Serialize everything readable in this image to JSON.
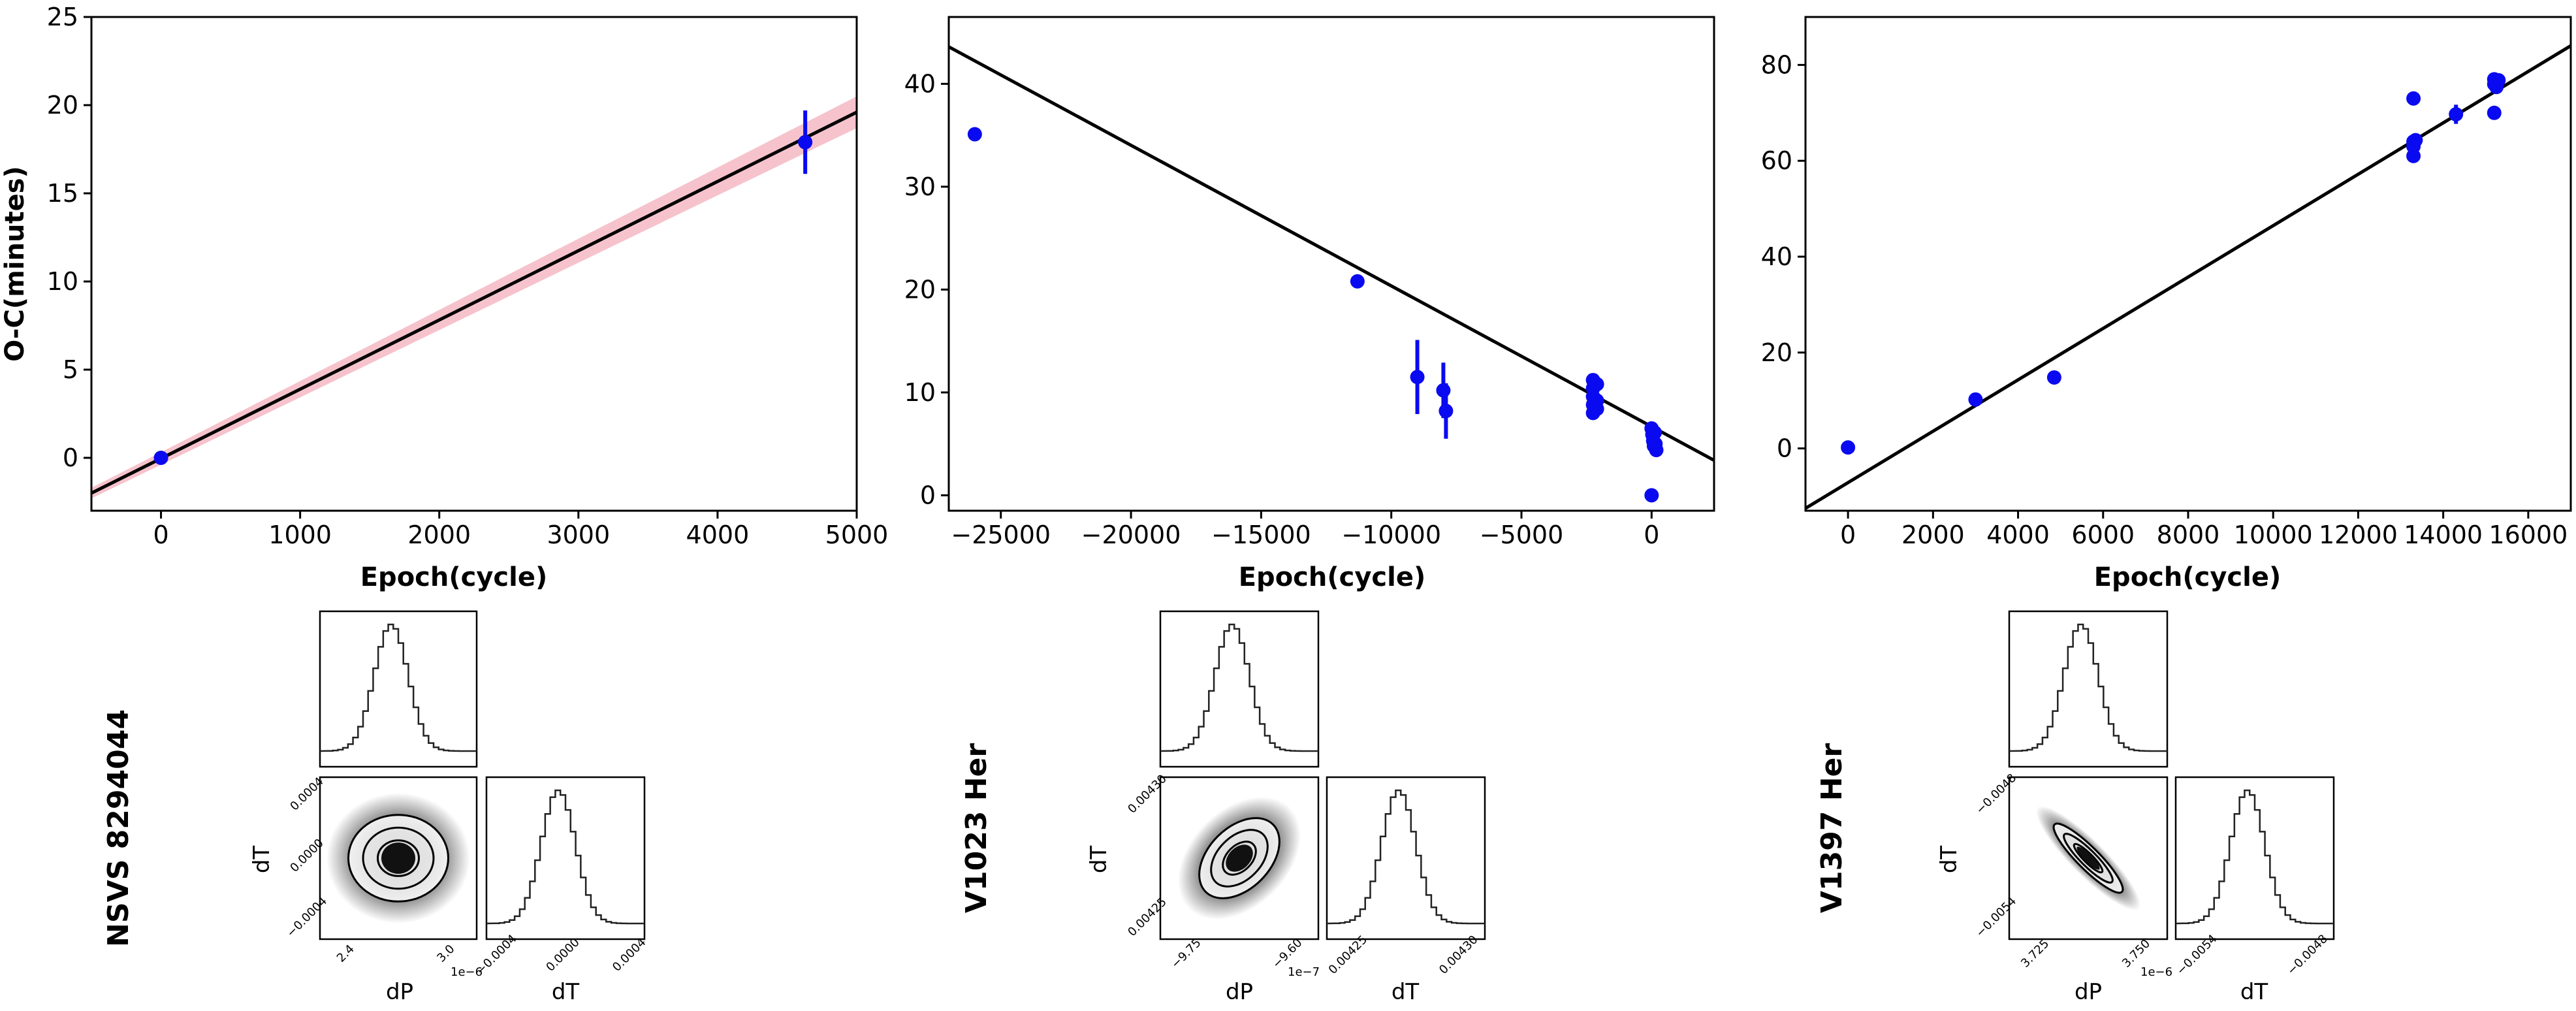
{
  "chart_data": [
    {
      "type": "scatter",
      "name": "panel-nsvs",
      "xlabel": "Epoch(cycle)",
      "ylabel": "O-C(minutes)",
      "xlim": [
        -500,
        5000
      ],
      "ylim": [
        -3,
        25
      ],
      "xticks": [
        0,
        1000,
        2000,
        3000,
        4000,
        5000
      ],
      "xtick_labels": [
        "0",
        "1000",
        "2000",
        "3000",
        "4000",
        "5000"
      ],
      "yticks": [
        0,
        5,
        10,
        15,
        20,
        25
      ],
      "ytick_labels": [
        "0",
        "5",
        "10",
        "15",
        "20",
        "25"
      ],
      "points": [
        {
          "x": 0,
          "y": 0,
          "err": 0.2
        },
        {
          "x": 4630,
          "y": 17.9,
          "err": 1.8
        }
      ],
      "fit_line": {
        "x": [
          -500,
          5000
        ],
        "y": [
          -2.0,
          19.6
        ]
      },
      "confidence_band": {
        "x": [
          -500,
          5000
        ],
        "lower": [
          -2.3,
          18.7
        ],
        "upper": [
          -1.7,
          20.5
        ],
        "color": "#f5b8c4"
      }
    },
    {
      "type": "scatter",
      "name": "panel-v1023",
      "xlabel": "Epoch(cycle)",
      "ylabel": "",
      "xlim": [
        -27000,
        2400
      ],
      "ylim": [
        -1.5,
        46.5
      ],
      "xticks": [
        -25000,
        -20000,
        -15000,
        -10000,
        -5000,
        0
      ],
      "xtick_labels": [
        "−25000",
        "−20000",
        "−15000",
        "−10000",
        "−5000",
        "0"
      ],
      "yticks": [
        0,
        10,
        20,
        30,
        40
      ],
      "ytick_labels": [
        "0",
        "10",
        "20",
        "30",
        "40"
      ],
      "points": [
        {
          "x": -26000,
          "y": 35.1,
          "err": 0
        },
        {
          "x": -11300,
          "y": 20.8,
          "err": 0
        },
        {
          "x": -9000,
          "y": 11.5,
          "err": 3.6
        },
        {
          "x": -8000,
          "y": 10.2,
          "err": 2.7
        },
        {
          "x": -7900,
          "y": 8.2,
          "err": 2.7
        },
        {
          "x": -2250,
          "y": 11.2,
          "err": 0
        },
        {
          "x": -2250,
          "y": 10.4,
          "err": 0
        },
        {
          "x": -2250,
          "y": 9.6,
          "err": 0
        },
        {
          "x": -2250,
          "y": 8.8,
          "err": 0
        },
        {
          "x": -2250,
          "y": 8.0,
          "err": 0
        },
        {
          "x": -2100,
          "y": 10.8,
          "err": 0
        },
        {
          "x": -2100,
          "y": 9.2,
          "err": 0
        },
        {
          "x": -2100,
          "y": 8.4,
          "err": 0
        },
        {
          "x": 0,
          "y": 6.5,
          "err": 0
        },
        {
          "x": 30,
          "y": 5.9,
          "err": 0
        },
        {
          "x": 60,
          "y": 5.3,
          "err": 0
        },
        {
          "x": 90,
          "y": 4.8,
          "err": 0
        },
        {
          "x": 120,
          "y": 6.1,
          "err": 0
        },
        {
          "x": 150,
          "y": 5.0,
          "err": 0
        },
        {
          "x": 180,
          "y": 4.4,
          "err": 0
        },
        {
          "x": 0,
          "y": 0.0,
          "err": 0
        }
      ],
      "fit_line": {
        "x": [
          -27000,
          2400
        ],
        "y": [
          43.6,
          3.4
        ]
      }
    },
    {
      "type": "scatter",
      "name": "panel-v1397",
      "xlabel": "Epoch(cycle)",
      "ylabel": "",
      "xlim": [
        -1000,
        17000
      ],
      "ylim": [
        -13,
        90
      ],
      "xticks": [
        0,
        2000,
        4000,
        6000,
        8000,
        10000,
        12000,
        14000,
        16000
      ],
      "xtick_labels": [
        "0",
        "2000",
        "4000",
        "6000",
        "8000",
        "10000",
        "12000",
        "14000",
        "16000"
      ],
      "yticks": [
        0,
        20,
        40,
        60,
        80
      ],
      "ytick_labels": [
        "0",
        "20",
        "40",
        "60",
        "80"
      ],
      "points": [
        {
          "x": 0,
          "y": 0.2,
          "err": 0
        },
        {
          "x": 3000,
          "y": 10.2,
          "err": 0
        },
        {
          "x": 4850,
          "y": 14.8,
          "err": 0
        },
        {
          "x": 13300,
          "y": 73.0,
          "err": 0
        },
        {
          "x": 13300,
          "y": 64.0,
          "err": 0
        },
        {
          "x": 13300,
          "y": 63.0,
          "err": 0
        },
        {
          "x": 13300,
          "y": 61.0,
          "err": 0
        },
        {
          "x": 13350,
          "y": 64.3,
          "err": 0
        },
        {
          "x": 14300,
          "y": 69.7,
          "err": 2.0
        },
        {
          "x": 15200,
          "y": 77.0,
          "err": 0
        },
        {
          "x": 15200,
          "y": 76.0,
          "err": 0
        },
        {
          "x": 15250,
          "y": 75.4,
          "err": 0
        },
        {
          "x": 15300,
          "y": 76.8,
          "err": 0
        },
        {
          "x": 15200,
          "y": 70.0,
          "err": 0
        }
      ],
      "fit_line": {
        "x": [
          -1000,
          17000
        ],
        "y": [
          -12.5,
          84.0
        ]
      }
    }
  ],
  "corner_plots": [
    {
      "object_label": "NSVS 8294044",
      "xlabel_left": "dP",
      "xlabel_right": "dT",
      "ylabel": "dT",
      "left_xticks": [
        "2.4",
        "3.0"
      ],
      "left_xscale": "1e−6",
      "yticks": [
        "0.0004",
        "0.0000",
        "−0.0004"
      ],
      "right_xticks": [
        "−0.0004",
        "0.0000",
        "0.0004"
      ],
      "correlation": 0.0
    },
    {
      "object_label": "V1023 Her",
      "xlabel_left": "dP",
      "xlabel_right": "dT",
      "ylabel": "dT",
      "left_xticks": [
        "−9.75",
        "−9.60"
      ],
      "left_xscale": "1e−7",
      "yticks": [
        "0.00430",
        "0.00425"
      ],
      "right_xticks": [
        "0.00425",
        "0.00430"
      ],
      "correlation": 0.55
    },
    {
      "object_label": "V1397 Her",
      "xlabel_left": "dP",
      "xlabel_right": "dT",
      "ylabel": "dT",
      "left_xticks": [
        "3.725",
        "3.750"
      ],
      "left_xscale": "1e−6",
      "yticks": [
        "−0.0048",
        "−0.0054"
      ],
      "right_xticks": [
        "−0.0054",
        "−0.0048"
      ],
      "correlation": -0.96
    }
  ],
  "colors": {
    "points": "#0a0af0",
    "line": "#000000",
    "band": "#f5b8c4",
    "hist": "#222222"
  }
}
